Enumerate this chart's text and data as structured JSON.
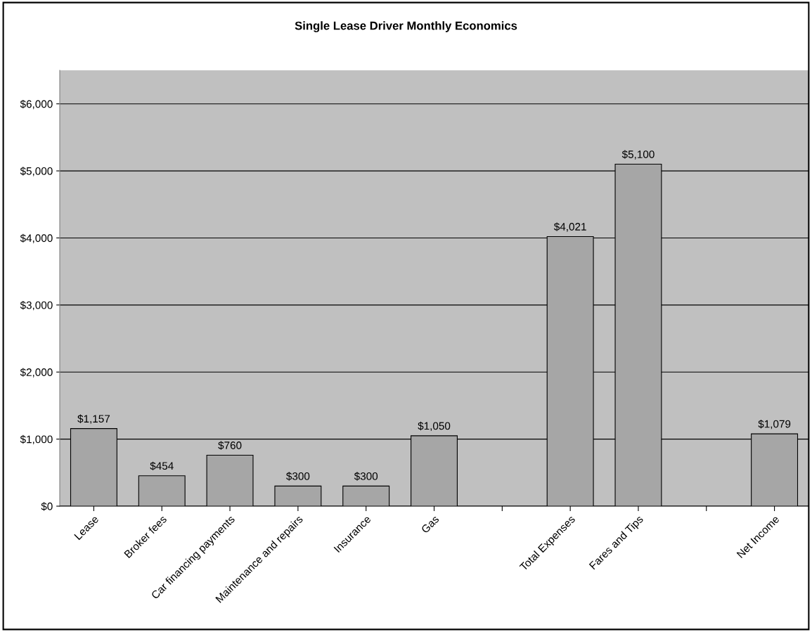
{
  "chart_data": {
    "type": "bar",
    "title": "Single Lease Driver Monthly Economics",
    "categories": [
      "Lease",
      "Broker fees",
      "Car financing payments",
      "Maintenance and repairs",
      "Insurance",
      "Gas",
      null,
      "Total Expenses",
      "Fares and Tips",
      null,
      "Net Income"
    ],
    "values": [
      1157,
      454,
      760,
      300,
      300,
      1050,
      null,
      4021,
      5100,
      null,
      1079
    ],
    "value_labels": [
      "$1,157",
      "$454",
      "$760",
      "$300",
      "$300",
      "$1,050",
      null,
      "$4,021",
      "$5,100",
      null,
      "$1,079"
    ],
    "color": "#a6a6a6",
    "ylim": [
      0,
      6500
    ],
    "yticks": [
      {
        "value": 0,
        "label": "$0"
      },
      {
        "value": 1000,
        "label": "$1,000"
      },
      {
        "value": 2000,
        "label": "$2,000"
      },
      {
        "value": 3000,
        "label": "$3,000"
      },
      {
        "value": 4000,
        "label": "$4,000"
      },
      {
        "value": 5000,
        "label": "$5,000"
      },
      {
        "value": 6000,
        "label": "$6,000"
      }
    ],
    "grid": "y",
    "legend": false
  }
}
